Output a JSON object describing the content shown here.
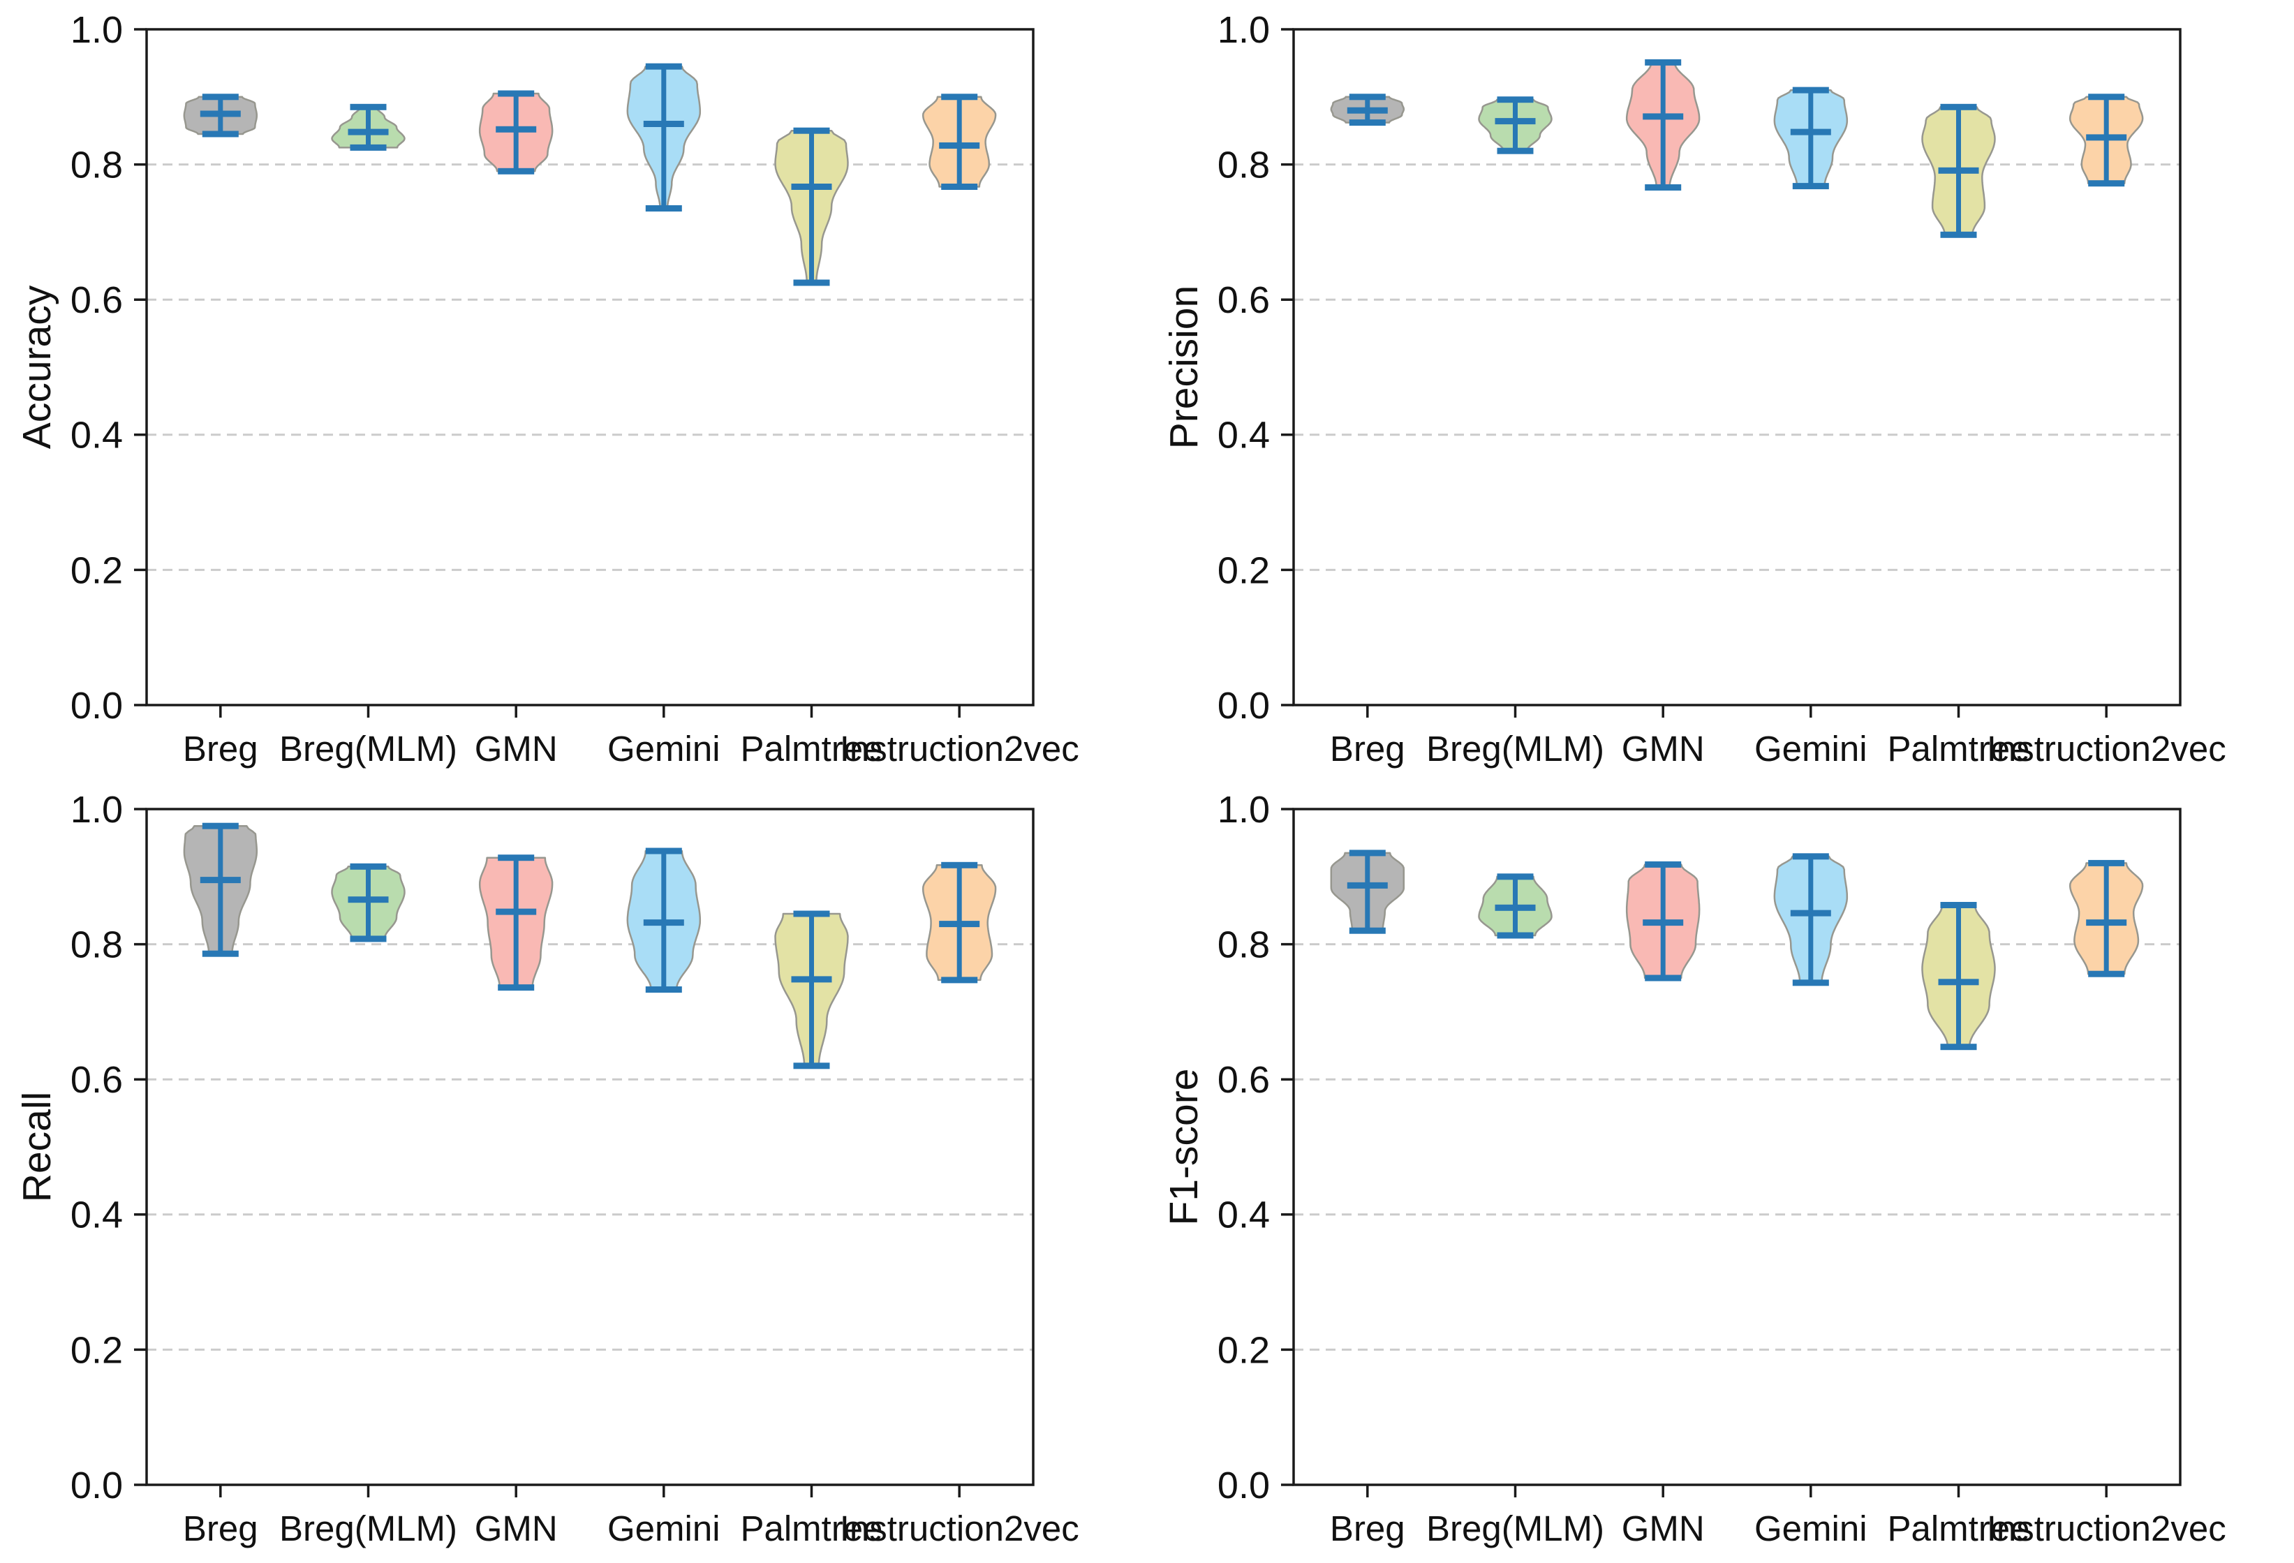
{
  "figure": {
    "background": "#ffffff",
    "axis_color": "#1a1a1a",
    "grid_color": "#cbcbcb",
    "stat_color": "#2878b5",
    "edge_color": "#97978f",
    "violin_fill_colors": [
      "#b5b5b5",
      "#b9dcae",
      "#f9b9b4",
      "#a9ddf6",
      "#e3e2a5",
      "#fcd3a8"
    ],
    "categories": [
      "Breg",
      "Breg(MLM)",
      "GMN",
      "Gemini",
      "Palmtree",
      "Instruction2vec"
    ],
    "ytick_labels": [
      "0.0",
      "0.2",
      "0.4",
      "0.6",
      "0.8",
      "1.0"
    ]
  },
  "chart_data": [
    {
      "type": "violin",
      "position": "top-left",
      "ylabel": "Accuracy",
      "ylim": [
        0,
        1
      ],
      "yticks": [
        0,
        0.2,
        0.4,
        0.6,
        0.8,
        1.0
      ],
      "ytick_labels": [
        "0.0",
        "0.2",
        "0.4",
        "0.6",
        "0.8",
        "1.0"
      ],
      "grid_y": [
        0.2,
        0.4,
        0.6,
        0.8
      ],
      "grid_style": "dashed",
      "categories": [
        "Breg",
        "Breg(MLM)",
        "GMN",
        "Gemini",
        "Palmtree",
        "Instruction2vec"
      ],
      "series": [
        {
          "name": "Breg",
          "min": 0.845,
          "max": 0.9,
          "mean": 0.875,
          "profile": [
            [
              0,
              0.62
            ],
            [
              0.18,
              0.95
            ],
            [
              0.5,
              1
            ],
            [
              0.82,
              0.95
            ],
            [
              1,
              0.6
            ]
          ]
        },
        {
          "name": "Breg(MLM)",
          "min": 0.825,
          "max": 0.885,
          "mean": 0.848,
          "profile": [
            [
              0,
              0.8
            ],
            [
              0.22,
              1
            ],
            [
              0.5,
              0.78
            ],
            [
              0.75,
              0.45
            ],
            [
              1,
              0.22
            ]
          ]
        },
        {
          "name": "GMN",
          "min": 0.79,
          "max": 0.905,
          "mean": 0.852,
          "profile": [
            [
              0,
              0.52
            ],
            [
              0.22,
              0.87
            ],
            [
              0.52,
              1
            ],
            [
              0.8,
              0.92
            ],
            [
              1,
              0.62
            ]
          ]
        },
        {
          "name": "Gemini",
          "min": 0.735,
          "max": 0.945,
          "mean": 0.86,
          "profile": [
            [
              0,
              0.1
            ],
            [
              0.18,
              0.22
            ],
            [
              0.42,
              0.55
            ],
            [
              0.68,
              1
            ],
            [
              0.88,
              0.92
            ],
            [
              1,
              0.5
            ]
          ]
        },
        {
          "name": "Palmtree",
          "min": 0.625,
          "max": 0.85,
          "mean": 0.767,
          "profile": [
            [
              0,
              0.13
            ],
            [
              0.25,
              0.28
            ],
            [
              0.5,
              0.55
            ],
            [
              0.78,
              1
            ],
            [
              0.92,
              0.95
            ],
            [
              1,
              0.55
            ]
          ]
        },
        {
          "name": "Instruction2vec",
          "min": 0.767,
          "max": 0.9,
          "mean": 0.828,
          "profile": [
            [
              0,
              0.55
            ],
            [
              0.25,
              0.82
            ],
            [
              0.5,
              0.72
            ],
            [
              0.8,
              1
            ],
            [
              1,
              0.6
            ]
          ]
        }
      ]
    },
    {
      "type": "violin",
      "position": "top-right",
      "ylabel": "Precision",
      "ylim": [
        0,
        1
      ],
      "yticks": [
        0,
        0.2,
        0.4,
        0.6,
        0.8,
        1.0
      ],
      "ytick_labels": [
        "0.0",
        "0.2",
        "0.4",
        "0.6",
        "0.8",
        "1.0"
      ],
      "grid_y": [
        0.2,
        0.4,
        0.6,
        0.8
      ],
      "grid_style": "dashed",
      "categories": [
        "Breg",
        "Breg(MLM)",
        "GMN",
        "Gemini",
        "Palmtree",
        "Instruction2vec"
      ],
      "series": [
        {
          "name": "Breg",
          "min": 0.862,
          "max": 0.9,
          "mean": 0.88,
          "profile": [
            [
              0,
              0.6
            ],
            [
              0.3,
              0.95
            ],
            [
              0.52,
              1
            ],
            [
              0.75,
              0.95
            ],
            [
              1,
              0.6
            ]
          ]
        },
        {
          "name": "Breg(MLM)",
          "min": 0.82,
          "max": 0.896,
          "mean": 0.864,
          "profile": [
            [
              0,
              0.32
            ],
            [
              0.3,
              0.68
            ],
            [
              0.62,
              1
            ],
            [
              0.85,
              0.9
            ],
            [
              1,
              0.5
            ]
          ]
        },
        {
          "name": "GMN",
          "min": 0.766,
          "max": 0.951,
          "mean": 0.871,
          "profile": [
            [
              0,
              0.18
            ],
            [
              0.28,
              0.45
            ],
            [
              0.55,
              1
            ],
            [
              0.78,
              0.85
            ],
            [
              1,
              0.32
            ]
          ]
        },
        {
          "name": "Gemini",
          "min": 0.768,
          "max": 0.91,
          "mean": 0.848,
          "profile": [
            [
              0,
              0.38
            ],
            [
              0.3,
              0.6
            ],
            [
              0.68,
              1
            ],
            [
              0.9,
              0.92
            ],
            [
              1,
              0.55
            ]
          ]
        },
        {
          "name": "Palmtree",
          "min": 0.696,
          "max": 0.885,
          "mean": 0.791,
          "profile": [
            [
              0,
              0.38
            ],
            [
              0.22,
              0.72
            ],
            [
              0.45,
              0.65
            ],
            [
              0.75,
              1
            ],
            [
              0.9,
              0.9
            ],
            [
              1,
              0.5
            ]
          ]
        },
        {
          "name": "Instruction2vec",
          "min": 0.772,
          "max": 0.9,
          "mean": 0.84,
          "profile": [
            [
              0,
              0.5
            ],
            [
              0.22,
              0.68
            ],
            [
              0.45,
              0.58
            ],
            [
              0.75,
              1
            ],
            [
              0.92,
              0.9
            ],
            [
              1,
              0.55
            ]
          ]
        }
      ]
    },
    {
      "type": "violin",
      "position": "bottom-left",
      "ylabel": "Recall",
      "ylim": [
        0,
        1
      ],
      "yticks": [
        0,
        0.2,
        0.4,
        0.6,
        0.8,
        1.0
      ],
      "ytick_labels": [
        "0.0",
        "0.2",
        "0.4",
        "0.6",
        "0.8",
        "1.0"
      ],
      "grid_y": [
        0.2,
        0.4,
        0.6,
        0.8
      ],
      "grid_style": "dashed",
      "categories": [
        "Breg",
        "Breg(MLM)",
        "GMN",
        "Gemini",
        "Palmtree",
        "Instruction2vec"
      ],
      "series": [
        {
          "name": "Breg",
          "min": 0.786,
          "max": 0.975,
          "mean": 0.895,
          "profile": [
            [
              0,
              0.32
            ],
            [
              0.25,
              0.5
            ],
            [
              0.55,
              0.82
            ],
            [
              0.8,
              1
            ],
            [
              0.93,
              0.97
            ],
            [
              1,
              0.72
            ]
          ]
        },
        {
          "name": "Breg(MLM)",
          "min": 0.808,
          "max": 0.915,
          "mean": 0.866,
          "profile": [
            [
              0,
              0.45
            ],
            [
              0.3,
              0.78
            ],
            [
              0.65,
              1
            ],
            [
              0.88,
              0.88
            ],
            [
              1,
              0.55
            ]
          ]
        },
        {
          "name": "GMN",
          "min": 0.736,
          "max": 0.928,
          "mean": 0.848,
          "profile": [
            [
              0,
              0.45
            ],
            [
              0.25,
              0.68
            ],
            [
              0.5,
              0.78
            ],
            [
              0.8,
              1
            ],
            [
              1,
              0.8
            ]
          ]
        },
        {
          "name": "Gemini",
          "min": 0.733,
          "max": 0.938,
          "mean": 0.832,
          "profile": [
            [
              0,
              0.35
            ],
            [
              0.25,
              0.8
            ],
            [
              0.5,
              1
            ],
            [
              0.75,
              0.88
            ],
            [
              1,
              0.5
            ]
          ]
        },
        {
          "name": "Palmtree",
          "min": 0.62,
          "max": 0.845,
          "mean": 0.748,
          "profile": [
            [
              0,
              0.2
            ],
            [
              0.3,
              0.42
            ],
            [
              0.62,
              0.9
            ],
            [
              0.85,
              1
            ],
            [
              1,
              0.78
            ]
          ]
        },
        {
          "name": "Instruction2vec",
          "min": 0.747,
          "max": 0.917,
          "mean": 0.83,
          "profile": [
            [
              0,
              0.58
            ],
            [
              0.22,
              0.9
            ],
            [
              0.5,
              0.78
            ],
            [
              0.8,
              1
            ],
            [
              1,
              0.62
            ]
          ]
        }
      ]
    },
    {
      "type": "violin",
      "position": "bottom-right",
      "ylabel": "F1-score",
      "ylim": [
        0,
        1
      ],
      "yticks": [
        0,
        0.2,
        0.4,
        0.6,
        0.8,
        1.0
      ],
      "ytick_labels": [
        "0.0",
        "0.2",
        "0.4",
        "0.6",
        "0.8",
        "1.0"
      ],
      "grid_y": [
        0.2,
        0.4,
        0.6,
        0.8
      ],
      "grid_style": "dashed",
      "categories": [
        "Breg",
        "Breg(MLM)",
        "GMN",
        "Gemini",
        "Palmtree",
        "Instruction2vec"
      ],
      "series": [
        {
          "name": "Breg",
          "min": 0.82,
          "max": 0.935,
          "mean": 0.887,
          "profile": [
            [
              0,
              0.42
            ],
            [
              0.25,
              0.48
            ],
            [
              0.55,
              1
            ],
            [
              0.8,
              1
            ],
            [
              1,
              0.62
            ]
          ]
        },
        {
          "name": "Breg(MLM)",
          "min": 0.813,
          "max": 0.9,
          "mean": 0.854,
          "profile": [
            [
              0,
              0.55
            ],
            [
              0.32,
              1
            ],
            [
              0.62,
              0.88
            ],
            [
              1,
              0.5
            ]
          ]
        },
        {
          "name": "GMN",
          "min": 0.75,
          "max": 0.918,
          "mean": 0.832,
          "profile": [
            [
              0,
              0.5
            ],
            [
              0.3,
              0.9
            ],
            [
              0.6,
              1
            ],
            [
              0.85,
              0.95
            ],
            [
              1,
              0.5
            ]
          ]
        },
        {
          "name": "Gemini",
          "min": 0.743,
          "max": 0.93,
          "mean": 0.846,
          "profile": [
            [
              0,
              0.3
            ],
            [
              0.3,
              0.55
            ],
            [
              0.68,
              1
            ],
            [
              0.9,
              0.92
            ],
            [
              1,
              0.5
            ]
          ]
        },
        {
          "name": "Palmtree",
          "min": 0.648,
          "max": 0.858,
          "mean": 0.744,
          "profile": [
            [
              0,
              0.3
            ],
            [
              0.3,
              0.85
            ],
            [
              0.55,
              1
            ],
            [
              0.8,
              0.85
            ],
            [
              1,
              0.45
            ]
          ]
        },
        {
          "name": "Instruction2vec",
          "min": 0.756,
          "max": 0.92,
          "mean": 0.832,
          "profile": [
            [
              0,
              0.5
            ],
            [
              0.3,
              0.88
            ],
            [
              0.55,
              0.75
            ],
            [
              0.8,
              1
            ],
            [
              1,
              0.55
            ]
          ]
        }
      ]
    }
  ]
}
